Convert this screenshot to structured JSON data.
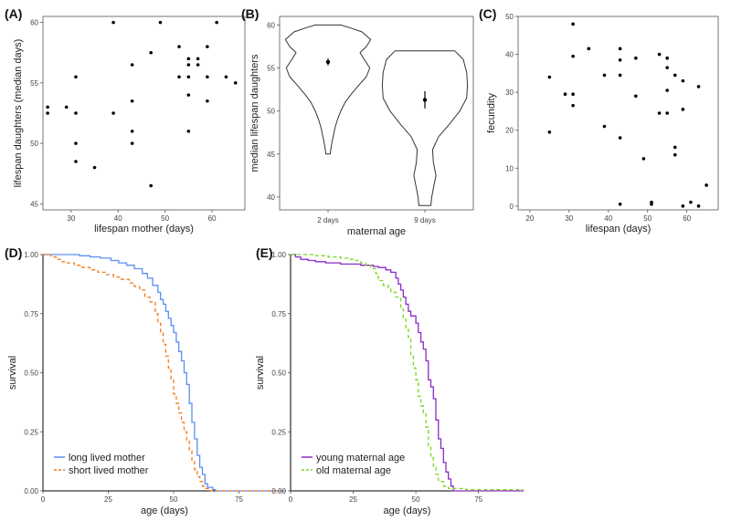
{
  "chart_data": [
    {
      "id": "A",
      "panel_label": "(A)",
      "type": "scatter",
      "xlabel": "lifespan mother (days)",
      "ylabel": "lifespan daughters (median days)",
      "xlim": [
        24,
        67
      ],
      "ylim": [
        44.5,
        60.5
      ],
      "xticks": [
        30,
        40,
        50,
        60
      ],
      "yticks": [
        45,
        50,
        55,
        60
      ],
      "points": [
        [
          25,
          53
        ],
        [
          25,
          52.5
        ],
        [
          29,
          53
        ],
        [
          31,
          55.5
        ],
        [
          31,
          52.5
        ],
        [
          31,
          50
        ],
        [
          31,
          48.5
        ],
        [
          35,
          48
        ],
        [
          39,
          60
        ],
        [
          39,
          52.5
        ],
        [
          43,
          56.5
        ],
        [
          43,
          53.5
        ],
        [
          43,
          51
        ],
        [
          43,
          50
        ],
        [
          47,
          57.5
        ],
        [
          47,
          46.5
        ],
        [
          49,
          60
        ],
        [
          53,
          58
        ],
        [
          53,
          55.5
        ],
        [
          55,
          57
        ],
        [
          55,
          56.5
        ],
        [
          55,
          55.5
        ],
        [
          55,
          54
        ],
        [
          55,
          51
        ],
        [
          57,
          57
        ],
        [
          57,
          56.5
        ],
        [
          59,
          58
        ],
        [
          59,
          55.5
        ],
        [
          59,
          53.5
        ],
        [
          61,
          60
        ],
        [
          63,
          55.5
        ],
        [
          65,
          55
        ]
      ]
    },
    {
      "id": "B",
      "panel_label": "(B)",
      "type": "violin",
      "xlabel": "maternal age",
      "ylabel": "median lifespan daughters",
      "ylim": [
        38.5,
        61
      ],
      "yticks": [
        40,
        45,
        50,
        55,
        60
      ],
      "categories": [
        "2 days",
        "9 days"
      ],
      "groups": [
        {
          "name": "2 days",
          "mean": 55.7,
          "se_low": 55.3,
          "se_high": 56.1,
          "profile": [
            [
              45,
              0.05
            ],
            [
              46,
              0.08
            ],
            [
              47,
              0.12
            ],
            [
              48,
              0.16
            ],
            [
              49,
              0.22
            ],
            [
              50,
              0.3
            ],
            [
              51,
              0.4
            ],
            [
              52,
              0.55
            ],
            [
              53,
              0.72
            ],
            [
              54,
              0.9
            ],
            [
              55,
              0.98
            ],
            [
              56,
              0.85
            ],
            [
              56.8,
              0.75
            ],
            [
              57.5,
              0.9
            ],
            [
              58.3,
              1.0
            ],
            [
              59.2,
              0.8
            ],
            [
              59.7,
              0.5
            ],
            [
              60,
              0.3
            ]
          ]
        },
        {
          "name": "9 days",
          "mean": 51.3,
          "se_low": 50.3,
          "se_high": 52.3,
          "profile": [
            [
              39,
              0.14
            ],
            [
              40,
              0.16
            ],
            [
              41,
              0.2
            ],
            [
              42.5,
              0.26
            ],
            [
              44,
              0.2
            ],
            [
              45.5,
              0.18
            ],
            [
              47,
              0.32
            ],
            [
              48.5,
              0.58
            ],
            [
              50,
              0.82
            ],
            [
              51.5,
              0.98
            ],
            [
              53,
              1.0
            ],
            [
              54.5,
              0.98
            ],
            [
              56,
              0.9
            ],
            [
              57,
              0.7
            ]
          ]
        }
      ]
    },
    {
      "id": "C",
      "panel_label": "(C)",
      "type": "scatter",
      "xlabel": "lifespan (days)",
      "ylabel": "fecundity",
      "xlim": [
        17,
        68
      ],
      "ylim": [
        -1,
        50
      ],
      "xticks": [
        20,
        30,
        40,
        50,
        60
      ],
      "yticks": [
        0,
        10,
        20,
        30,
        40,
        50
      ],
      "points": [
        [
          25,
          34
        ],
        [
          25,
          19.5
        ],
        [
          29,
          29.5
        ],
        [
          31,
          48
        ],
        [
          31,
          39.5
        ],
        [
          31,
          29.5
        ],
        [
          31,
          26.5
        ],
        [
          35,
          41.5
        ],
        [
          39,
          34.5
        ],
        [
          39,
          21
        ],
        [
          43,
          41.5
        ],
        [
          43,
          38.5
        ],
        [
          43,
          34.5
        ],
        [
          43,
          18
        ],
        [
          43,
          0.5
        ],
        [
          47,
          39
        ],
        [
          47,
          29
        ],
        [
          49,
          12.5
        ],
        [
          51,
          1
        ],
        [
          51,
          0.5
        ],
        [
          53,
          40
        ],
        [
          53,
          24.5
        ],
        [
          55,
          39
        ],
        [
          55,
          36.5
        ],
        [
          55,
          30.5
        ],
        [
          55,
          24.5
        ],
        [
          57,
          34.5
        ],
        [
          57,
          15.5
        ],
        [
          57,
          13.5
        ],
        [
          59,
          33
        ],
        [
          59,
          25.5
        ],
        [
          59,
          0
        ],
        [
          61,
          1
        ],
        [
          63,
          31.5
        ],
        [
          63,
          0
        ],
        [
          65,
          5.5
        ]
      ]
    },
    {
      "id": "D",
      "panel_label": "(D)",
      "type": "line",
      "subtype": "survival-step",
      "xlabel": "age (days)",
      "ylabel": "survival",
      "xlim": [
        0,
        93
      ],
      "ylim": [
        0,
        1
      ],
      "xticks": [
        0,
        25,
        50,
        75
      ],
      "yticks": [
        0,
        0.25,
        0.5,
        0.75,
        1
      ],
      "ytick_labels": [
        "0.00",
        "0.25",
        "0.50",
        "0.75",
        "1.00"
      ],
      "legend_position": "bottom-left",
      "series": [
        {
          "name": "long lived mother",
          "color": "#5b8ff0",
          "dash": "solid",
          "points": [
            [
              0,
              1
            ],
            [
              8,
              1
            ],
            [
              14,
              0.995
            ],
            [
              18,
              0.99
            ],
            [
              22,
              0.985
            ],
            [
              26,
              0.975
            ],
            [
              29,
              0.965
            ],
            [
              32,
              0.955
            ],
            [
              35,
              0.94
            ],
            [
              38,
              0.92
            ],
            [
              40,
              0.9
            ],
            [
              42,
              0.87
            ],
            [
              44,
              0.84
            ],
            [
              45,
              0.81
            ],
            [
              46,
              0.79
            ],
            [
              47,
              0.76
            ],
            [
              48,
              0.73
            ],
            [
              49,
              0.7
            ],
            [
              50,
              0.67
            ],
            [
              51,
              0.63
            ],
            [
              52,
              0.59
            ],
            [
              53,
              0.55
            ],
            [
              54,
              0.5
            ],
            [
              55,
              0.45
            ],
            [
              56,
              0.37
            ],
            [
              57,
              0.29
            ],
            [
              58,
              0.22
            ],
            [
              59,
              0.15
            ],
            [
              60,
              0.1
            ],
            [
              61,
              0.07
            ],
            [
              62,
              0.03
            ],
            [
              63,
              0.015
            ],
            [
              65,
              0.005
            ],
            [
              66,
              0
            ],
            [
              93,
              0
            ]
          ]
        },
        {
          "name": "short lived mother",
          "color": "#f07a1e",
          "dash": "dashed",
          "points": [
            [
              0,
              1
            ],
            [
              3,
              0.99
            ],
            [
              5,
              0.98
            ],
            [
              7,
              0.97
            ],
            [
              9,
              0.965
            ],
            [
              12,
              0.955
            ],
            [
              15,
              0.945
            ],
            [
              18,
              0.935
            ],
            [
              21,
              0.925
            ],
            [
              24,
              0.915
            ],
            [
              27,
              0.905
            ],
            [
              30,
              0.895
            ],
            [
              33,
              0.88
            ],
            [
              35,
              0.865
            ],
            [
              37,
              0.85
            ],
            [
              39,
              0.82
            ],
            [
              41,
              0.8
            ],
            [
              43,
              0.75
            ],
            [
              44,
              0.71
            ],
            [
              45,
              0.67
            ],
            [
              46,
              0.62
            ],
            [
              47,
              0.57
            ],
            [
              48,
              0.52
            ],
            [
              49,
              0.47
            ],
            [
              50,
              0.41
            ],
            [
              51,
              0.37
            ],
            [
              52,
              0.33
            ],
            [
              53,
              0.29
            ],
            [
              54,
              0.25
            ],
            [
              55,
              0.21
            ],
            [
              56,
              0.17
            ],
            [
              57,
              0.13
            ],
            [
              58,
              0.09
            ],
            [
              59,
              0.06
            ],
            [
              60,
              0.04
            ],
            [
              61,
              0.02
            ],
            [
              62,
              0.01
            ],
            [
              64,
              0
            ],
            [
              93,
              0
            ]
          ]
        }
      ]
    },
    {
      "id": "E",
      "panel_label": "(E)",
      "type": "line",
      "subtype": "survival-step",
      "xlabel": "age (days)",
      "ylabel": "survival",
      "xlim": [
        0,
        93
      ],
      "ylim": [
        0,
        1
      ],
      "xticks": [
        0,
        25,
        50,
        75
      ],
      "yticks": [
        0,
        0.25,
        0.5,
        0.75,
        1
      ],
      "ytick_labels": [
        "0.00",
        "0.25",
        "0.50",
        "0.75",
        "1.00"
      ],
      "legend_position": "bottom-left",
      "series": [
        {
          "name": "young maternal age",
          "color": "#8b2bc4",
          "dash": "solid",
          "points": [
            [
              0,
              1
            ],
            [
              2,
              0.99
            ],
            [
              4,
              0.98
            ],
            [
              7,
              0.975
            ],
            [
              10,
              0.97
            ],
            [
              14,
              0.965
            ],
            [
              20,
              0.96
            ],
            [
              28,
              0.955
            ],
            [
              33,
              0.95
            ],
            [
              35,
              0.945
            ],
            [
              38,
              0.935
            ],
            [
              40,
              0.925
            ],
            [
              42,
              0.9
            ],
            [
              43,
              0.875
            ],
            [
              44,
              0.85
            ],
            [
              45,
              0.82
            ],
            [
              46,
              0.79
            ],
            [
              47,
              0.76
            ],
            [
              48,
              0.74
            ],
            [
              50,
              0.71
            ],
            [
              51,
              0.67
            ],
            [
              52,
              0.63
            ],
            [
              53,
              0.6
            ],
            [
              54,
              0.55
            ],
            [
              55,
              0.47
            ],
            [
              56,
              0.44
            ],
            [
              57,
              0.39
            ],
            [
              58,
              0.3
            ],
            [
              59,
              0.22
            ],
            [
              60,
              0.18
            ],
            [
              61,
              0.12
            ],
            [
              62,
              0.08
            ],
            [
              63,
              0.05
            ],
            [
              64,
              0.02
            ],
            [
              65,
              0
            ],
            [
              93,
              0
            ]
          ]
        },
        {
          "name": "old maternal age",
          "color": "#7ad61e",
          "dash": "dashed",
          "points": [
            [
              0,
              1
            ],
            [
              5,
              1
            ],
            [
              10,
              0.995
            ],
            [
              15,
              0.99
            ],
            [
              20,
              0.985
            ],
            [
              23,
              0.98
            ],
            [
              26,
              0.975
            ],
            [
              28,
              0.965
            ],
            [
              30,
              0.955
            ],
            [
              32,
              0.94
            ],
            [
              34,
              0.92
            ],
            [
              35,
              0.89
            ],
            [
              37,
              0.87
            ],
            [
              39,
              0.86
            ],
            [
              40,
              0.84
            ],
            [
              42,
              0.82
            ],
            [
              44,
              0.77
            ],
            [
              45,
              0.73
            ],
            [
              46,
              0.69
            ],
            [
              47,
              0.65
            ],
            [
              48,
              0.57
            ],
            [
              49,
              0.52
            ],
            [
              50,
              0.47
            ],
            [
              51,
              0.4
            ],
            [
              52,
              0.36
            ],
            [
              53,
              0.33
            ],
            [
              54,
              0.27
            ],
            [
              55,
              0.19
            ],
            [
              56,
              0.14
            ],
            [
              57,
              0.1
            ],
            [
              58,
              0.07
            ],
            [
              59,
              0.04
            ],
            [
              61,
              0.02
            ],
            [
              63,
              0.01
            ],
            [
              70,
              0.005
            ],
            [
              93,
              0.005
            ]
          ]
        }
      ]
    }
  ]
}
